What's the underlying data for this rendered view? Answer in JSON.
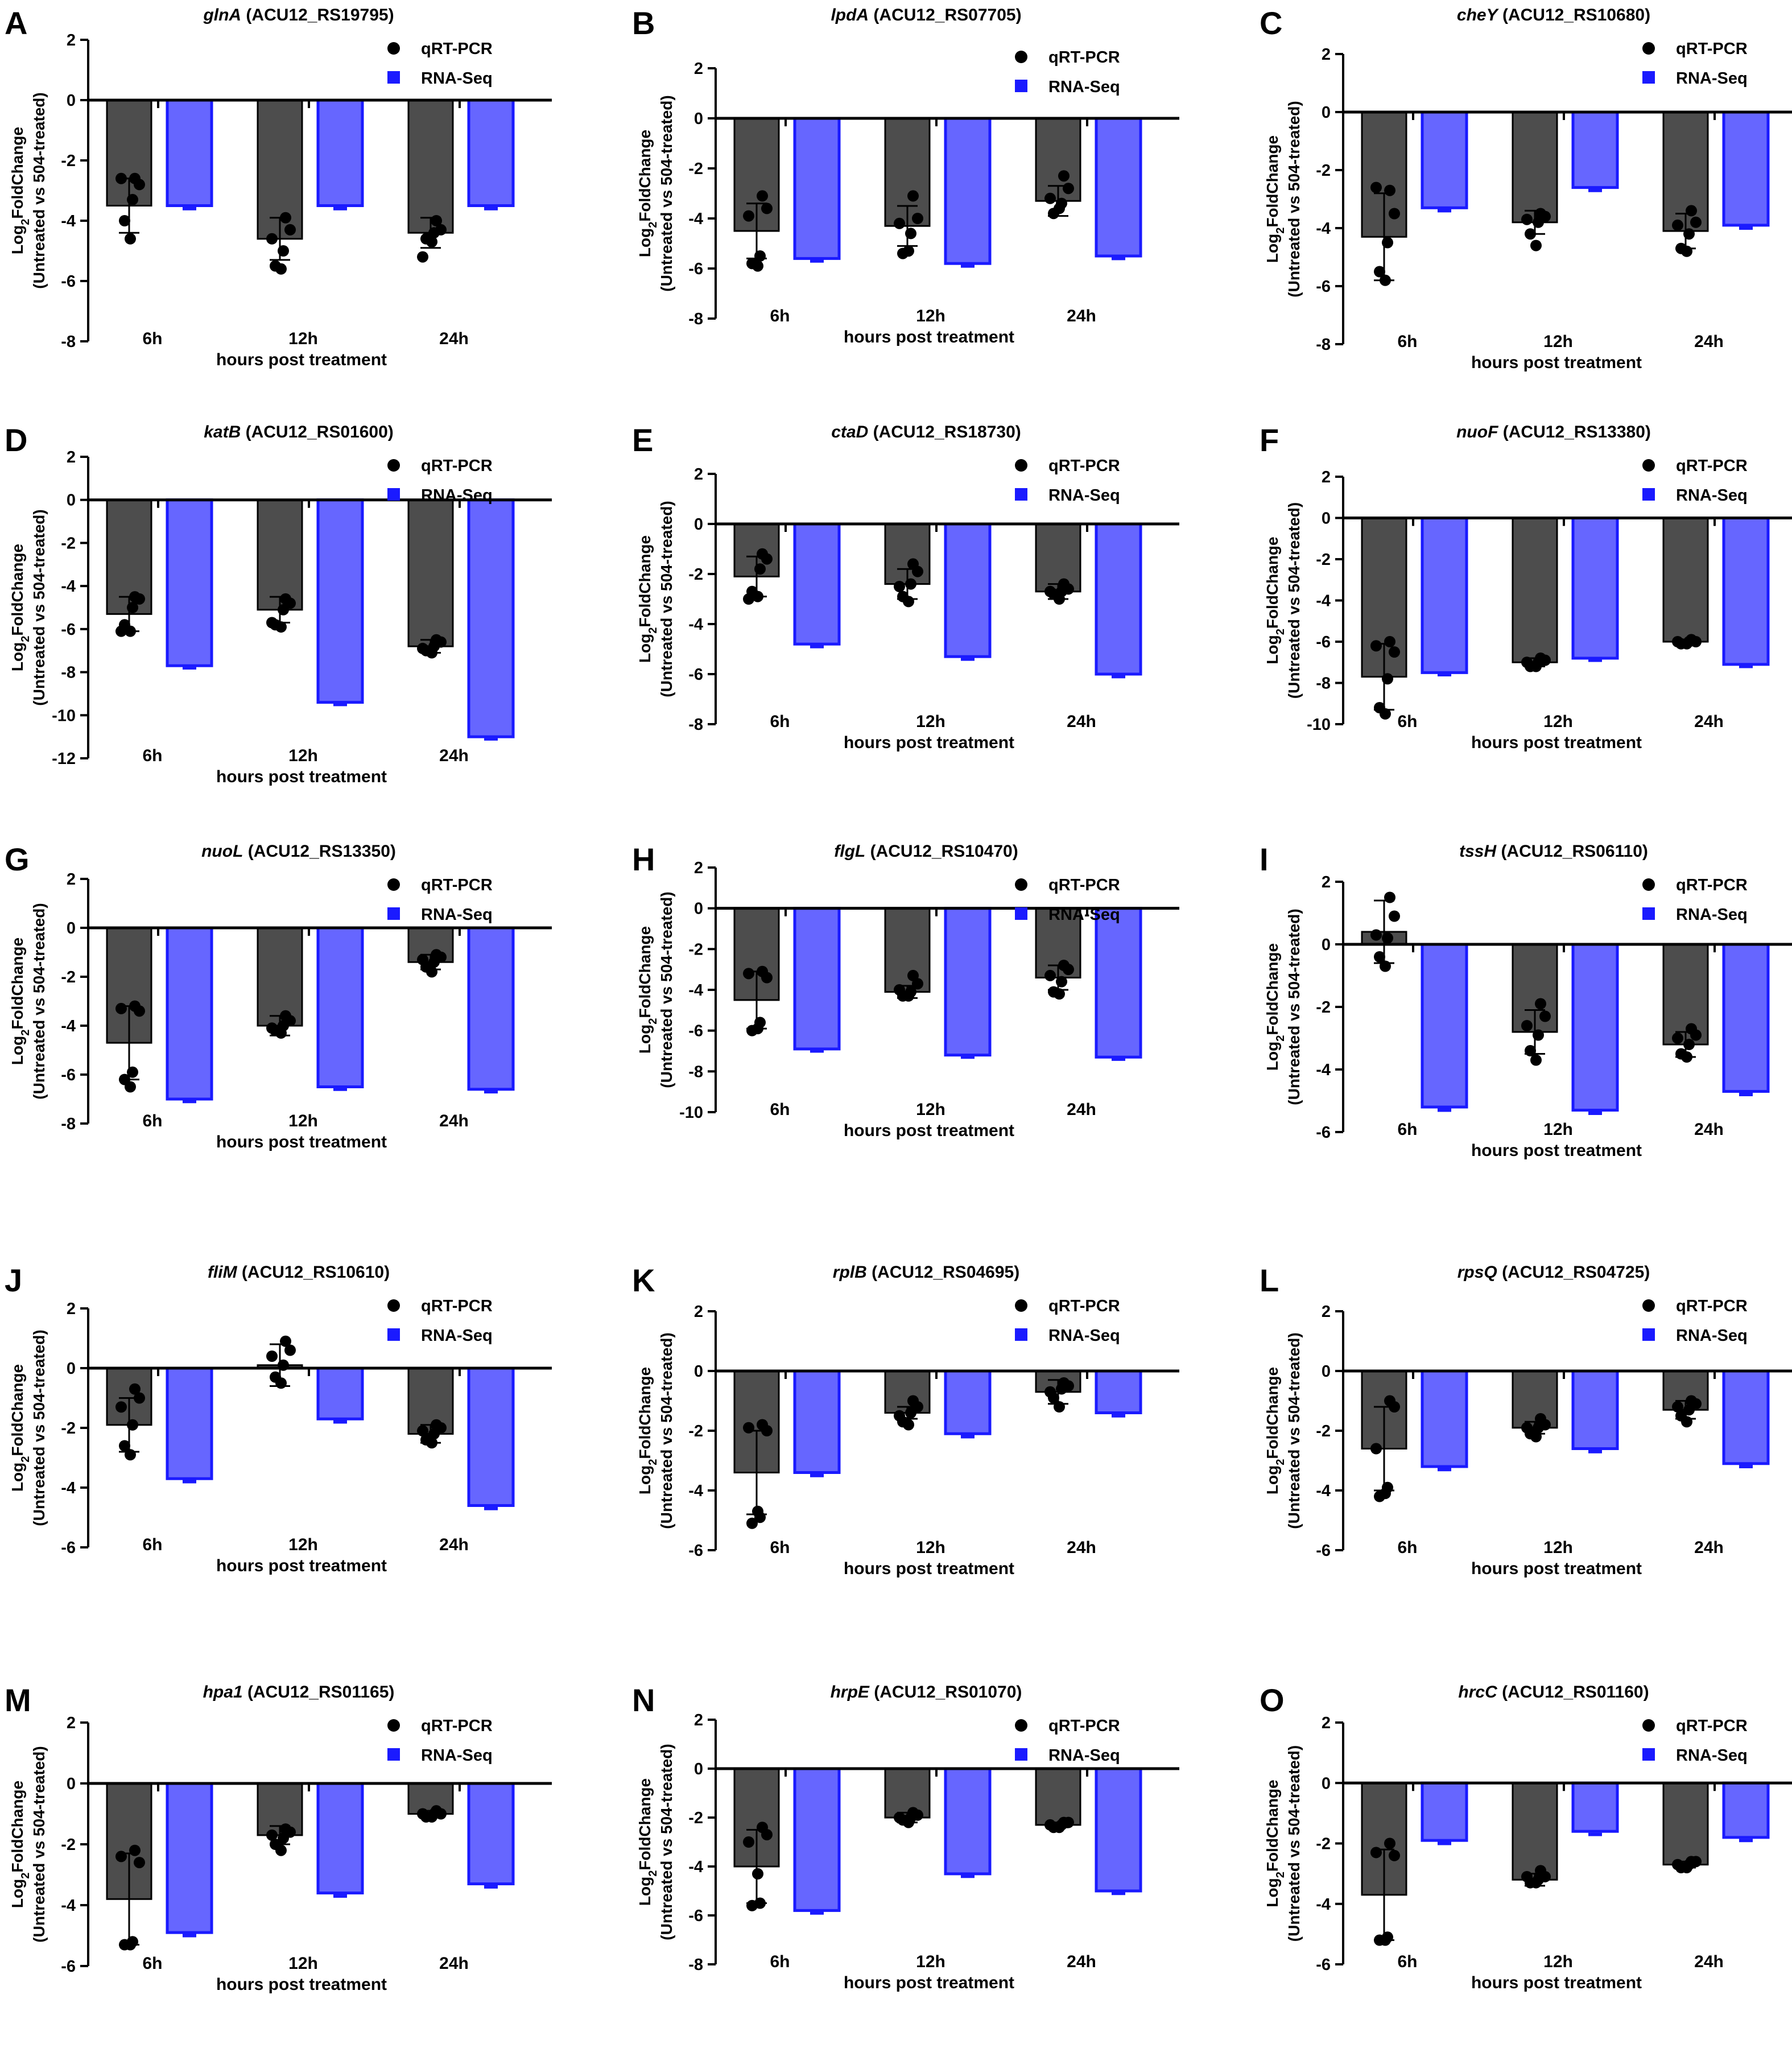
{
  "figure": {
    "colors": {
      "qrt_bar": "#4d4d4d",
      "rna_bar": "#6666ff",
      "rna_edge": "#1a1aff",
      "legend_rna": "#1a1aff",
      "point": "#000000"
    },
    "legend": {
      "qrt": "qRT-PCR",
      "rna": "RNA-Seq"
    },
    "ylabel_line1": "Log",
    "ylabel_sub": "2",
    "ylabel_line1_rest": "FoldChange",
    "ylabel_line2": "(Untreated vs 504-treated)",
    "xlabel": "hours post treatment",
    "categories": [
      "6h",
      "12h",
      "24h"
    ]
  },
  "chart_data": [
    {
      "letter": "A",
      "gene": "glnA",
      "locus": "(ACU12_RS19795)",
      "type": "bar",
      "ylim": [
        -8,
        2
      ],
      "yticks": [
        2,
        0,
        -2,
        -4,
        -6,
        -8
      ],
      "series": [
        {
          "name": "qRT-PCR",
          "values": [
            -3.5,
            -4.6,
            -4.4
          ],
          "errors": [
            0.9,
            0.7,
            0.5
          ],
          "points": [
            [
              -2.6,
              -2.8,
              -3.3,
              -4.0,
              -4.6,
              -2.6
            ],
            [
              -3.9,
              -4.3,
              -5.0,
              -5.5,
              -5.6,
              -4.6
            ],
            [
              -4.0,
              -4.3,
              -4.4,
              -4.6,
              -4.7,
              -5.2
            ]
          ]
        },
        {
          "name": "RNA-Seq",
          "values": [
            -3.5,
            -3.5,
            -3.5
          ],
          "errors": [
            0.1,
            0.1,
            0.1
          ]
        }
      ]
    },
    {
      "letter": "B",
      "gene": "lpdA",
      "locus": "(ACU12_RS07705)",
      "type": "bar",
      "ylim": [
        -8,
        2
      ],
      "yticks": [
        2,
        0,
        -2,
        -4,
        -6,
        -8
      ],
      "series": [
        {
          "name": "qRT-PCR",
          "values": [
            -4.5,
            -4.3,
            -3.3
          ],
          "errors": [
            1.1,
            0.8,
            0.6
          ],
          "points": [
            [
              -3.1,
              -3.6,
              -5.5,
              -5.8,
              -5.9,
              -3.9
            ],
            [
              -3.1,
              -4.0,
              -4.6,
              -5.4,
              -5.3,
              -4.2
            ],
            [
              -2.3,
              -2.8,
              -3.4,
              -3.8,
              -3.6,
              -3.2
            ]
          ]
        },
        {
          "name": "RNA-Seq",
          "values": [
            -5.6,
            -5.8,
            -5.5
          ],
          "errors": [
            0.1,
            0.1,
            0.1
          ]
        }
      ]
    },
    {
      "letter": "C",
      "gene": "cheY",
      "locus": "(ACU12_RS10680)",
      "type": "bar",
      "ylim": [
        -8,
        2
      ],
      "yticks": [
        2,
        0,
        -2,
        -4,
        -6,
        -8
      ],
      "series": [
        {
          "name": "qRT-PCR",
          "values": [
            -4.3,
            -3.8,
            -4.1
          ],
          "errors": [
            1.5,
            0.4,
            0.6
          ],
          "points": [
            [
              -2.7,
              -3.5,
              -4.5,
              -5.5,
              -5.8,
              -2.6
            ],
            [
              -3.5,
              -3.6,
              -3.8,
              -4.2,
              -4.6,
              -3.7
            ],
            [
              -3.4,
              -3.8,
              -4.2,
              -4.7,
              -4.8,
              -3.9
            ]
          ]
        },
        {
          "name": "RNA-Seq",
          "values": [
            -3.3,
            -2.6,
            -3.9
          ],
          "errors": [
            0.1,
            0.1,
            0.1
          ]
        }
      ]
    },
    {
      "letter": "D",
      "gene": "katB",
      "locus": "(ACU12_RS01600)",
      "type": "bar",
      "ylim": [
        -12,
        2
      ],
      "yticks": [
        2,
        0,
        -2,
        -4,
        -6,
        -8,
        -10,
        -12
      ],
      "series": [
        {
          "name": "qRT-PCR",
          "values": [
            -5.3,
            -5.1,
            -6.8
          ],
          "errors": [
            0.8,
            0.6,
            0.3
          ],
          "points": [
            [
              -4.5,
              -4.6,
              -5.0,
              -5.8,
              -6.1,
              -6.1
            ],
            [
              -4.6,
              -4.8,
              -5.1,
              -5.8,
              -5.9,
              -5.7
            ],
            [
              -6.5,
              -6.6,
              -6.8,
              -7.0,
              -7.1,
              -6.9
            ]
          ]
        },
        {
          "name": "RNA-Seq",
          "values": [
            -7.7,
            -9.4,
            -11.0
          ],
          "errors": [
            0.1,
            0.1,
            0.1
          ]
        }
      ]
    },
    {
      "letter": "E",
      "gene": "ctaD",
      "locus": "(ACU12_RS18730)",
      "type": "bar",
      "ylim": [
        -8,
        2
      ],
      "yticks": [
        2,
        0,
        -2,
        -4,
        -6,
        -8
      ],
      "series": [
        {
          "name": "qRT-PCR",
          "values": [
            -2.1,
            -2.4,
            -2.7
          ],
          "errors": [
            0.8,
            0.6,
            0.3
          ],
          "points": [
            [
              -1.2,
              -1.4,
              -1.8,
              -2.7,
              -2.9,
              -3.0
            ],
            [
              -1.6,
              -1.9,
              -2.4,
              -2.9,
              -3.1,
              -2.5
            ],
            [
              -2.4,
              -2.6,
              -2.7,
              -2.8,
              -3.0,
              -2.7
            ]
          ]
        },
        {
          "name": "RNA-Seq",
          "values": [
            -4.8,
            -5.3,
            -6.0
          ],
          "errors": [
            0.1,
            0.1,
            0.1
          ]
        }
      ]
    },
    {
      "letter": "F",
      "gene": "nuoF",
      "locus": "(ACU12_RS13380)",
      "type": "bar",
      "ylim": [
        -10,
        2
      ],
      "yticks": [
        2,
        0,
        -2,
        -4,
        -6,
        -8,
        -10
      ],
      "series": [
        {
          "name": "qRT-PCR",
          "values": [
            -7.7,
            -7.0,
            -6.0
          ],
          "errors": [
            1.6,
            0.2,
            0.1
          ],
          "points": [
            [
              -6.0,
              -6.5,
              -7.8,
              -9.2,
              -9.5,
              -6.2
            ],
            [
              -6.8,
              -6.9,
              -7.0,
              -7.2,
              -7.2,
              -7.0
            ],
            [
              -5.9,
              -6.0,
              -6.0,
              -6.1,
              -6.1,
              -6.0
            ]
          ]
        },
        {
          "name": "RNA-Seq",
          "values": [
            -7.5,
            -6.8,
            -7.1
          ],
          "errors": [
            0.1,
            0.1,
            0.1
          ]
        }
      ]
    },
    {
      "letter": "G",
      "gene": "nuoL",
      "locus": "(ACU12_RS13350)",
      "type": "bar",
      "ylim": [
        -8,
        2
      ],
      "yticks": [
        2,
        0,
        -2,
        -4,
        -6,
        -8
      ],
      "series": [
        {
          "name": "qRT-PCR",
          "values": [
            -4.7,
            -4.0,
            -1.4
          ],
          "errors": [
            1.5,
            0.4,
            0.3
          ],
          "points": [
            [
              -3.2,
              -3.4,
              -5.9,
              -6.2,
              -6.5,
              -3.3
            ],
            [
              -3.6,
              -3.8,
              -4.0,
              -4.2,
              -4.3,
              -4.1
            ],
            [
              -1.1,
              -1.2,
              -1.4,
              -1.6,
              -1.8,
              -1.3
            ]
          ]
        },
        {
          "name": "RNA-Seq",
          "values": [
            -7.0,
            -6.5,
            -6.6
          ],
          "errors": [
            0.1,
            0.1,
            0.1
          ]
        }
      ]
    },
    {
      "letter": "H",
      "gene": "flgL",
      "locus": "(ACU12_RS10470)",
      "type": "bar",
      "ylim": [
        -10,
        2
      ],
      "yticks": [
        2,
        0,
        -2,
        -4,
        -6,
        -8,
        -10
      ],
      "series": [
        {
          "name": "qRT-PCR",
          "values": [
            -4.5,
            -4.1,
            -3.4
          ],
          "errors": [
            1.4,
            0.3,
            0.6
          ],
          "points": [
            [
              -3.1,
              -3.4,
              -5.6,
              -6.0,
              -5.9,
              -3.2
            ],
            [
              -3.3,
              -3.7,
              -4.1,
              -4.3,
              -4.3,
              -4.0
            ],
            [
              -2.8,
              -3.0,
              -3.6,
              -4.1,
              -4.2,
              -3.3
            ]
          ]
        },
        {
          "name": "RNA-Seq",
          "values": [
            -6.9,
            -7.2,
            -7.3
          ],
          "errors": [
            0.1,
            0.1,
            0.1
          ]
        }
      ]
    },
    {
      "letter": "I",
      "gene": "tssH",
      "locus": "(ACU12_RS06110)",
      "type": "bar",
      "ylim": [
        -6,
        2
      ],
      "yticks": [
        2,
        0,
        -2,
        -4,
        -6
      ],
      "series": [
        {
          "name": "qRT-PCR",
          "values": [
            0.4,
            -2.8,
            -3.2
          ],
          "errors": [
            1.0,
            0.7,
            0.4
          ],
          "points": [
            [
              1.5,
              0.9,
              0.2,
              -0.4,
              -0.7,
              0.3
            ],
            [
              -1.9,
              -2.3,
              -2.9,
              -3.4,
              -3.7,
              -2.6
            ],
            [
              -2.7,
              -2.9,
              -3.2,
              -3.5,
              -3.6,
              -3.0
            ]
          ]
        },
        {
          "name": "RNA-Seq",
          "values": [
            -5.2,
            -5.3,
            -4.7
          ],
          "errors": [
            0.1,
            0.1,
            0.1
          ]
        }
      ]
    },
    {
      "letter": "J",
      "gene": "fliM",
      "locus": "(ACU12_RS10610)",
      "type": "bar",
      "ylim": [
        -6,
        2
      ],
      "yticks": [
        2,
        0,
        -2,
        -4,
        -6
      ],
      "series": [
        {
          "name": "qRT-PCR",
          "values": [
            -1.9,
            0.1,
            -2.2
          ],
          "errors": [
            0.9,
            0.7,
            0.3
          ],
          "points": [
            [
              -0.7,
              -1.0,
              -1.9,
              -2.6,
              -2.9,
              -1.3
            ],
            [
              0.9,
              0.6,
              0.1,
              -0.3,
              -0.5,
              0.4
            ],
            [
              -1.9,
              -2.0,
              -2.2,
              -2.4,
              -2.5,
              -2.1
            ]
          ]
        },
        {
          "name": "RNA-Seq",
          "values": [
            -3.7,
            -1.7,
            -4.6
          ],
          "errors": [
            0.1,
            0.1,
            0.1
          ]
        }
      ]
    },
    {
      "letter": "K",
      "gene": "rplB",
      "locus": "(ACU12_RS04695)",
      "type": "bar",
      "ylim": [
        -6,
        2
      ],
      "yticks": [
        2,
        0,
        -2,
        -4,
        -6
      ],
      "series": [
        {
          "name": "qRT-PCR",
          "values": [
            -3.4,
            -1.4,
            -0.7
          ],
          "errors": [
            1.4,
            0.2,
            0.4
          ],
          "points": [
            [
              -1.8,
              -2.0,
              -4.9,
              -5.1,
              -4.7,
              -1.9
            ],
            [
              -1.0,
              -1.2,
              -1.4,
              -1.7,
              -1.8,
              -1.5
            ],
            [
              -0.4,
              -0.5,
              -0.6,
              -0.9,
              -1.2,
              -0.7
            ]
          ]
        },
        {
          "name": "RNA-Seq",
          "values": [
            -3.4,
            -2.1,
            -1.4
          ],
          "errors": [
            0.1,
            0.1,
            0.1
          ]
        }
      ]
    },
    {
      "letter": "L",
      "gene": "rpsQ",
      "locus": "(ACU12_RS04725)",
      "type": "bar",
      "ylim": [
        -6,
        2
      ],
      "yticks": [
        2,
        0,
        -2,
        -4,
        -6
      ],
      "series": [
        {
          "name": "qRT-PCR",
          "values": [
            -2.6,
            -1.9,
            -1.3
          ],
          "errors": [
            1.4,
            0.2,
            0.3
          ],
          "points": [
            [
              -1.0,
              -1.2,
              -3.9,
              -4.2,
              -4.1,
              -2.6
            ],
            [
              -1.6,
              -1.8,
              -1.9,
              -2.1,
              -2.2,
              -1.9
            ],
            [
              -1.0,
              -1.1,
              -1.3,
              -1.5,
              -1.7,
              -1.2
            ]
          ]
        },
        {
          "name": "RNA-Seq",
          "values": [
            -3.2,
            -2.6,
            -3.1
          ],
          "errors": [
            0.1,
            0.1,
            0.1
          ]
        }
      ]
    },
    {
      "letter": "M",
      "gene": "hpa1",
      "locus": "(ACU12_RS01165)",
      "type": "bar",
      "ylim": [
        -6,
        2
      ],
      "yticks": [
        2,
        0,
        -2,
        -4,
        -6
      ],
      "series": [
        {
          "name": "qRT-PCR",
          "values": [
            -3.8,
            -1.7,
            -1.0
          ],
          "errors": [
            1.5,
            0.3,
            0.1
          ],
          "points": [
            [
              -2.2,
              -2.6,
              -5.2,
              -5.3,
              -5.3,
              -2.4
            ],
            [
              -1.5,
              -1.6,
              -1.8,
              -2.0,
              -2.2,
              -1.7
            ],
            [
              -0.9,
              -1.0,
              -1.0,
              -1.1,
              -1.1,
              -1.0
            ]
          ]
        },
        {
          "name": "RNA-Seq",
          "values": [
            -4.9,
            -3.6,
            -3.3
          ],
          "errors": [
            0.1,
            0.1,
            0.1
          ]
        }
      ]
    },
    {
      "letter": "N",
      "gene": "hrpE",
      "locus": "(ACU12_RS01070)",
      "type": "bar",
      "ylim": [
        -8,
        2
      ],
      "yticks": [
        2,
        0,
        -2,
        -4,
        -6,
        -8
      ],
      "series": [
        {
          "name": "qRT-PCR",
          "values": [
            -4.0,
            -2.0,
            -2.3
          ],
          "errors": [
            1.5,
            0.2,
            0.1
          ],
          "points": [
            [
              -2.4,
              -2.7,
              -5.5,
              -5.6,
              -4.3,
              -3.0
            ],
            [
              -1.8,
              -1.9,
              -2.0,
              -2.1,
              -2.2,
              -2.0
            ],
            [
              -2.2,
              -2.2,
              -2.3,
              -2.4,
              -2.4,
              -2.3
            ]
          ]
        },
        {
          "name": "RNA-Seq",
          "values": [
            -5.8,
            -4.3,
            -5.0
          ],
          "errors": [
            0.1,
            0.1,
            0.1
          ]
        }
      ]
    },
    {
      "letter": "O",
      "gene": "hrcC",
      "locus": "(ACU12_RS01160)",
      "type": "bar",
      "ylim": [
        -6,
        2
      ],
      "yticks": [
        2,
        0,
        -2,
        -4,
        -6
      ],
      "series": [
        {
          "name": "qRT-PCR",
          "values": [
            -3.7,
            -3.2,
            -2.7
          ],
          "errors": [
            1.5,
            0.2,
            0.1
          ],
          "points": [
            [
              -2.0,
              -2.4,
              -5.1,
              -5.2,
              -5.2,
              -2.3
            ],
            [
              -2.9,
              -3.1,
              -3.2,
              -3.3,
              -3.3,
              -3.1
            ],
            [
              -2.6,
              -2.6,
              -2.7,
              -2.8,
              -2.8,
              -2.7
            ]
          ]
        },
        {
          "name": "RNA-Seq",
          "values": [
            -1.9,
            -1.6,
            -1.8
          ],
          "errors": [
            0.1,
            0.1,
            0.1
          ]
        }
      ]
    }
  ]
}
